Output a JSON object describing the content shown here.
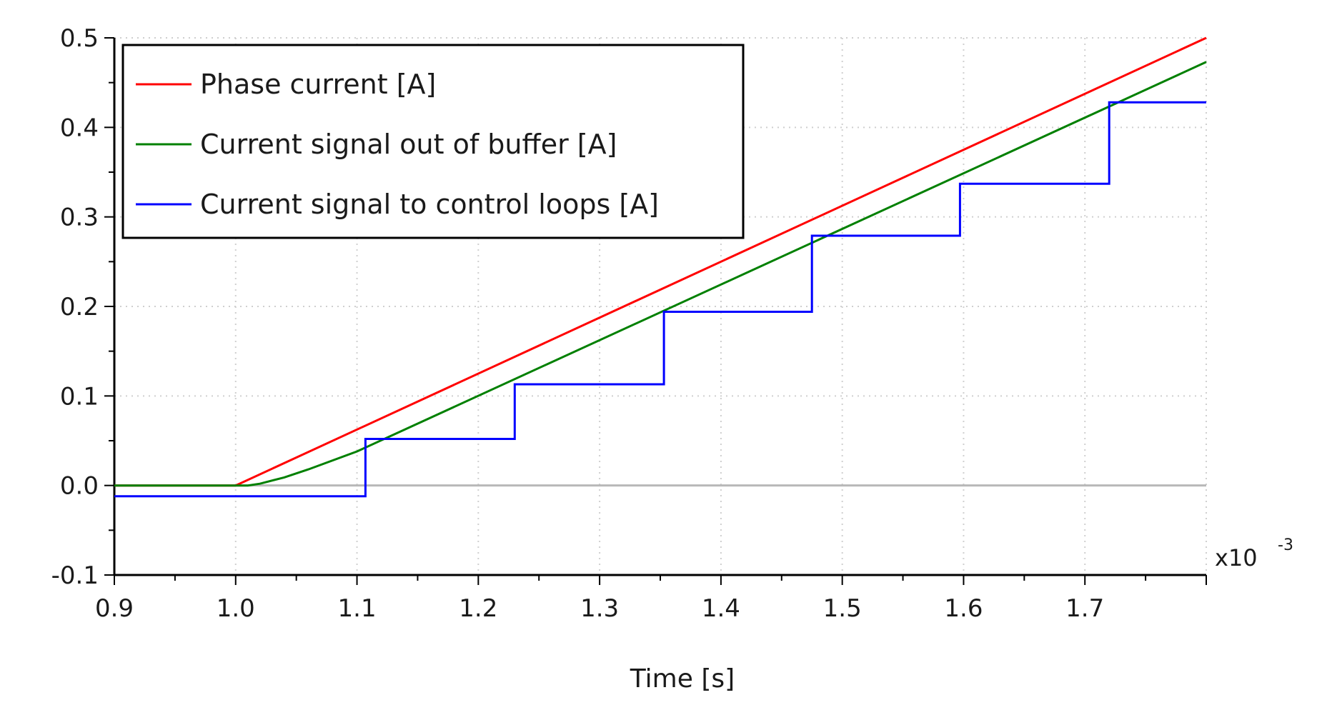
{
  "chart_data": {
    "type": "line",
    "title": "",
    "xlabel": "Time [s]",
    "ylabel": "",
    "x_multiplier_label": "x10",
    "x_multiplier_exponent": "-3",
    "xlim": [
      0.9,
      1.8
    ],
    "ylim": [
      -0.1,
      0.5
    ],
    "x_ticks": [
      "0.9",
      "1.0",
      "1.1",
      "1.2",
      "1.3",
      "1.4",
      "1.5",
      "1.6",
      "1.7"
    ],
    "y_ticks": [
      "0.5",
      "0.4",
      "0.3",
      "0.2",
      "0.1",
      "0.0",
      "-0.1"
    ],
    "grid": true,
    "legend_position": "top-left",
    "series": [
      {
        "name": "Phase current [A]",
        "color": "#ff0000",
        "x": [
          0.9,
          1.0,
          1.8
        ],
        "y": [
          0.0,
          0.0,
          0.5
        ]
      },
      {
        "name": "Current signal out of buffer [A]",
        "color": "#008000",
        "x": [
          0.9,
          1.0,
          1.01,
          1.02,
          1.04,
          1.06,
          1.1,
          1.8
        ],
        "y": [
          0.0,
          0.0,
          0.0,
          0.002,
          0.009,
          0.018,
          0.038,
          0.473
        ]
      },
      {
        "name": "Current signal to control loops [A]",
        "color": "#0000ff",
        "step": true,
        "x": [
          0.9,
          1.107,
          1.23,
          1.353,
          1.475,
          1.597,
          1.72,
          1.8
        ],
        "y": [
          -0.012,
          0.052,
          0.113,
          0.194,
          0.279,
          0.337,
          0.428,
          0.428
        ]
      }
    ]
  }
}
